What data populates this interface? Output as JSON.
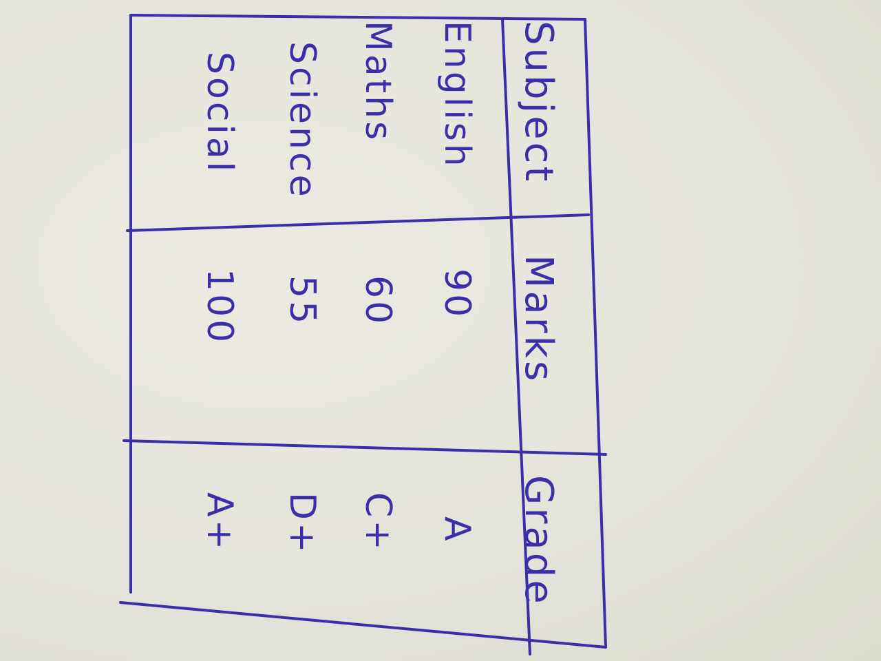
{
  "table": {
    "headers": [
      "Subject",
      "Marks",
      "Grade"
    ],
    "rows": [
      {
        "subject": "English",
        "marks": "90",
        "grade": "A"
      },
      {
        "subject": "Maths",
        "marks": "60",
        "grade": "C+"
      },
      {
        "subject": "Science",
        "marks": "55",
        "grade": "D+"
      },
      {
        "subject": "Social",
        "marks": "100",
        "grade": "A+"
      }
    ]
  },
  "ink_color": "#3a2fa8"
}
